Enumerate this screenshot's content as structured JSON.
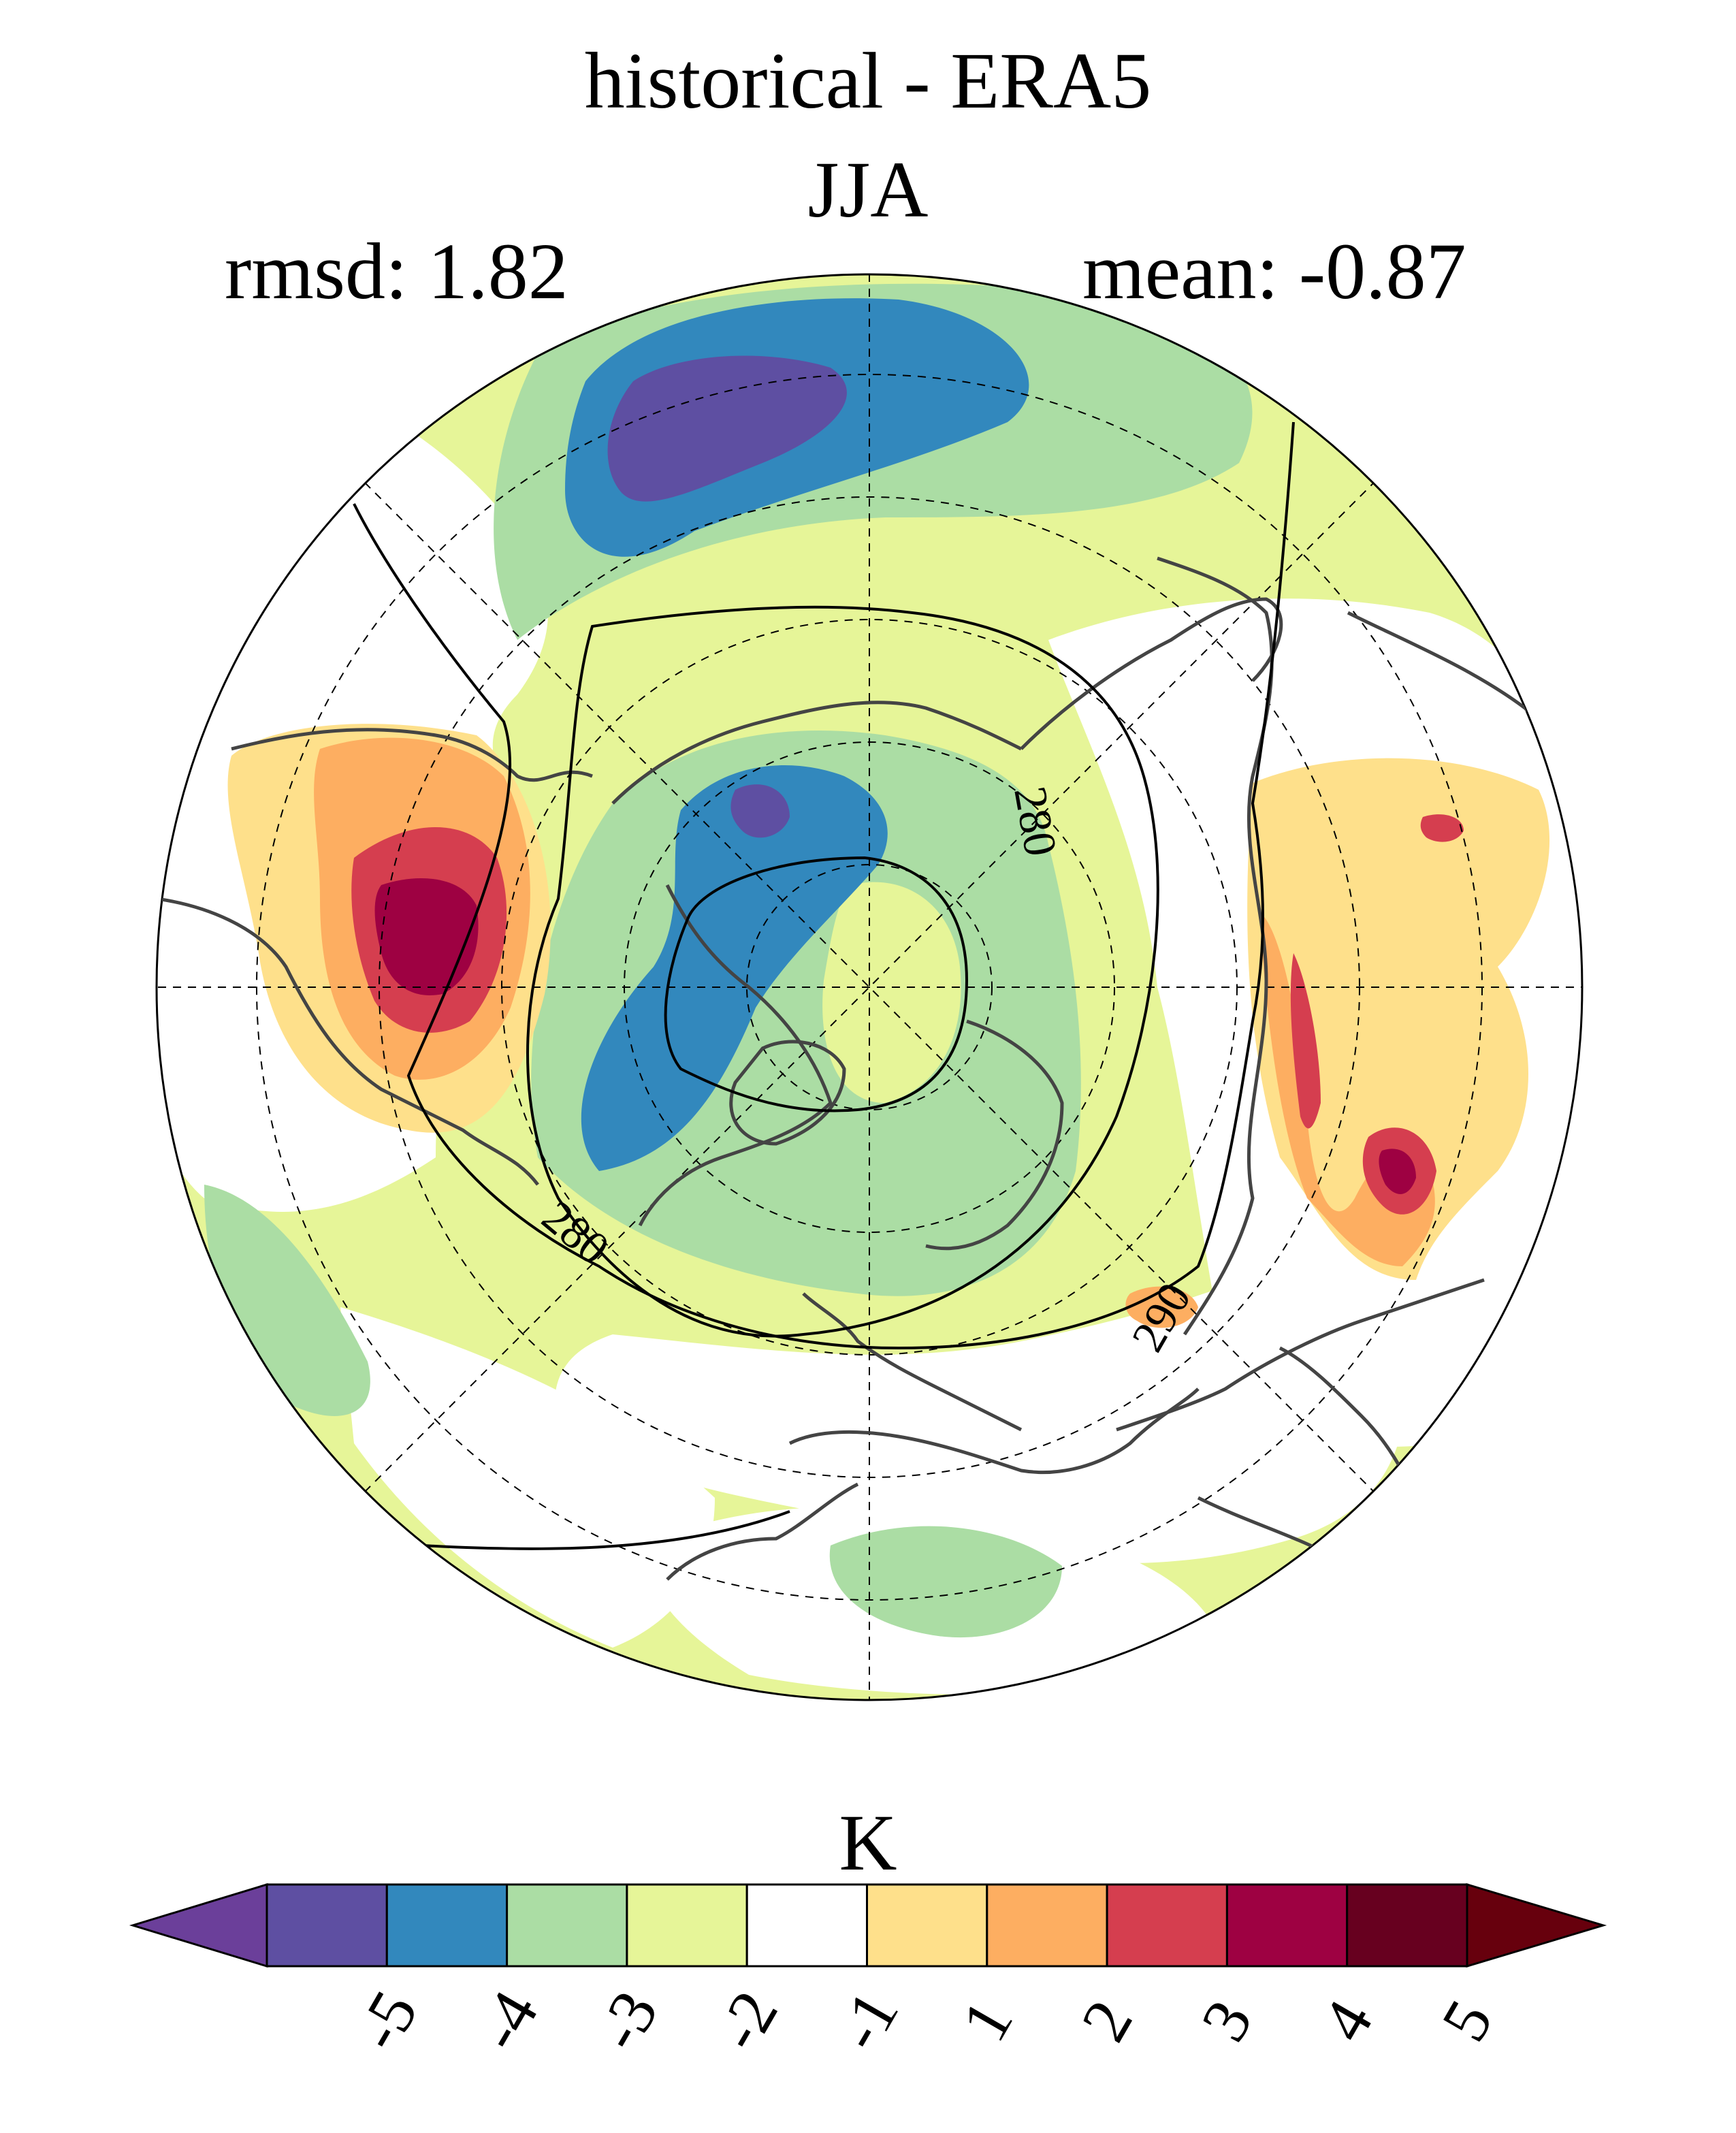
{
  "title": {
    "line1": "historical - ERA5",
    "line2": "JJA",
    "rmsd": "rmsd: 1.82",
    "mean": "mean: -0.87"
  },
  "map": {
    "projection": "north-polar-stereographic",
    "contour_labels": [
      "280",
      "280",
      "290"
    ]
  },
  "colorbar": {
    "units": "K",
    "ticks": [
      "-5",
      "-4",
      "-3",
      "-2",
      "-1",
      "1",
      "2",
      "3",
      "4",
      "5"
    ],
    "colors": [
      "#5e4fa2",
      "#3288bd",
      "#abdda4",
      "#e6f598",
      "#ffffff",
      "#fee08b",
      "#fdae61",
      "#d53e4f",
      "#9e0142",
      "#67001f"
    ],
    "under_color": "#6b3f9a",
    "over_color": "#67000d"
  }
}
